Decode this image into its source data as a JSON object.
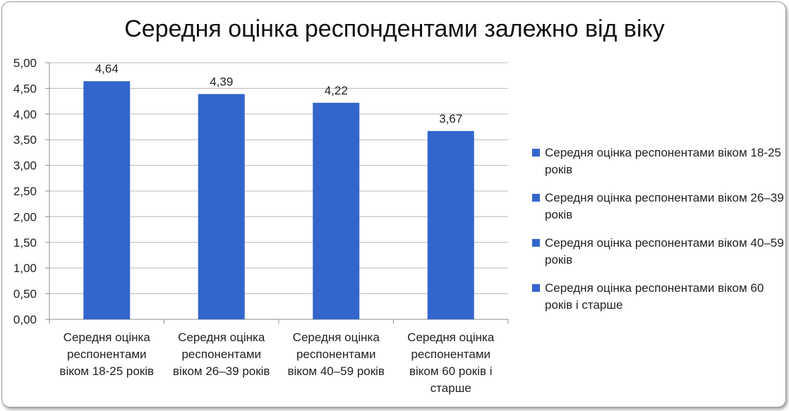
{
  "chart_data": {
    "type": "bar",
    "title": "Середня оцінка респондентами залежно від віку",
    "categories": [
      "Середня оцінка респонентами віком 18-25 років",
      "Середня оцінка респонентами віком 26–39 років",
      "Середня оцінка респонентами віком 40–59 років",
      "Середня оцінка респонентами віком 60 років і старше"
    ],
    "category_lines": [
      [
        "Середня оцінка",
        "респонентами",
        "віком 18-25 років"
      ],
      [
        "Середня оцінка",
        "респонентами",
        "віком 26–39 років"
      ],
      [
        "Середня оцінка",
        "респонентами",
        "віком 40–59 років"
      ],
      [
        "Середня оцінка",
        "респонентами",
        "віком 60 років і",
        "старше"
      ]
    ],
    "values": [
      4.64,
      4.39,
      4.22,
      3.67
    ],
    "value_labels": [
      "4,64",
      "4,39",
      "4,22",
      "3,67"
    ],
    "ylim": [
      0,
      5
    ],
    "yticks": [
      "0,00",
      "0,50",
      "1,00",
      "1,50",
      "2,00",
      "2,50",
      "3,00",
      "3,50",
      "4,00",
      "4,50",
      "5,00"
    ],
    "grid": true,
    "legend_position": "right",
    "legend": [
      "Середня оцінка респонентами віком 18-25 років",
      "Середня оцінка респонентами віком 26–39 років",
      "Середня оцінка респонентами віком 40–59 років",
      "Середня оцінка респонентами віком 60 років і старше"
    ],
    "bar_color": "#3366cc"
  }
}
